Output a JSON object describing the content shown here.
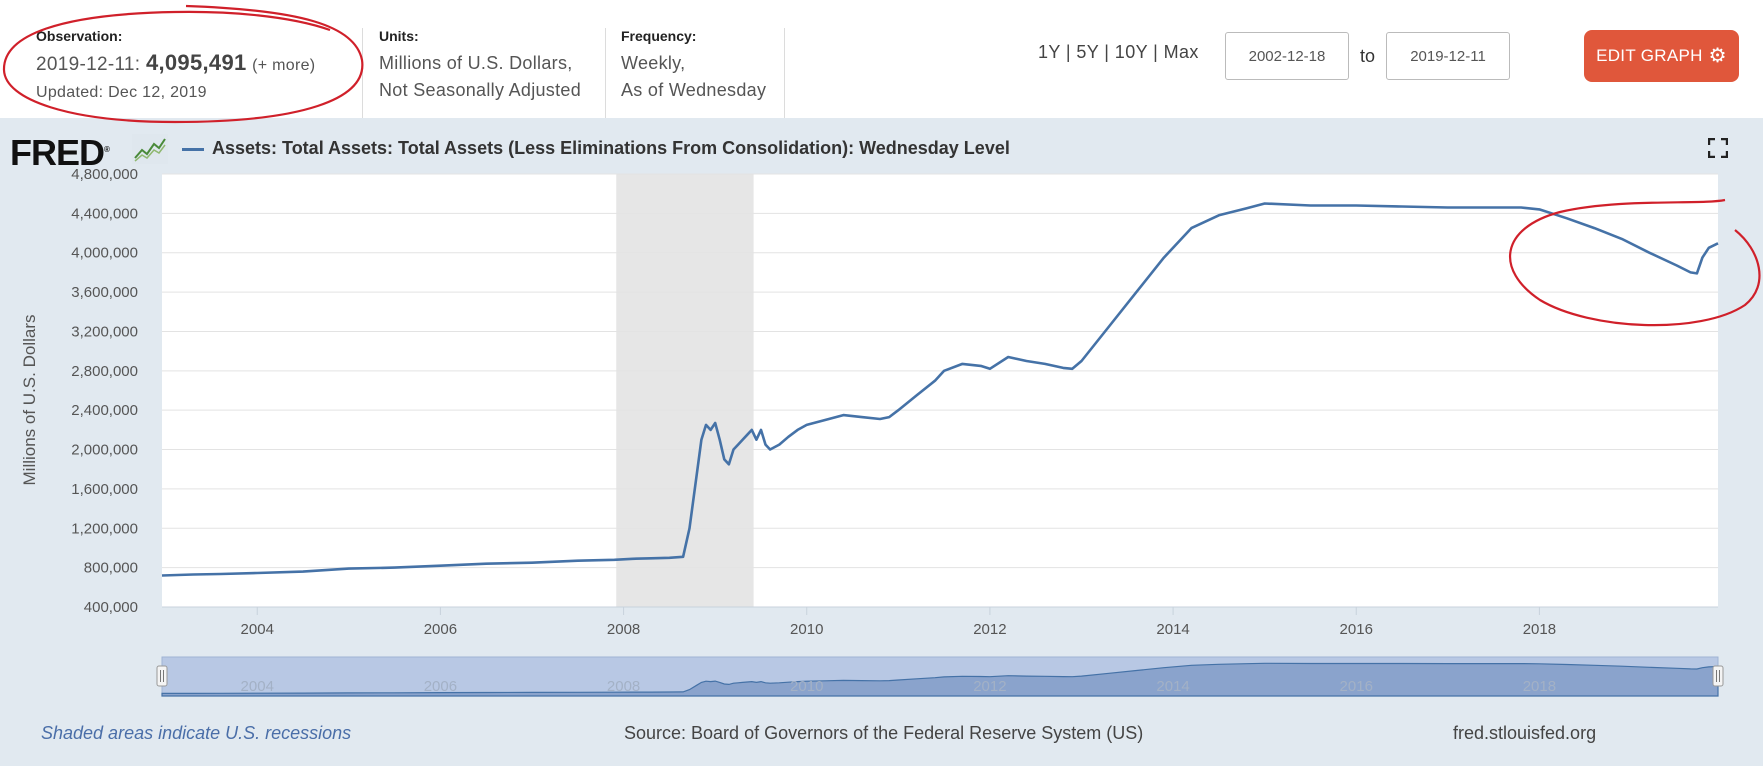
{
  "header": {
    "observation_label": "Observation:",
    "observation_date": "2019-12-11:",
    "observation_value": "4,095,491",
    "observation_more": "(+ more)",
    "updated": "Updated: Dec 12, 2019",
    "units_label": "Units:",
    "units_line1": "Millions of U.S. Dollars,",
    "units_line2": "Not Seasonally Adjusted",
    "frequency_label": "Frequency:",
    "frequency_line1": "Weekly,",
    "frequency_line2": "As of Wednesday",
    "range_1y": "1Y",
    "range_5y": "5Y",
    "range_10y": "10Y",
    "range_max": "Max",
    "range_sep": "|",
    "date_from": "2002-12-18",
    "date_to": "2019-12-11",
    "to_label": "to",
    "edit_graph": "EDIT GRAPH",
    "edit_icon": "gear-icon"
  },
  "logo": {
    "text": "FRED",
    "reg": "®"
  },
  "footer": {
    "recession_note": "Shaded areas indicate U.S. recessions",
    "source": "Source: Board of Governors of the Federal Reserve System (US)",
    "site": "fred.stlouisfed.org"
  },
  "colors": {
    "series": "#4572a7",
    "edit_button": "#e0573b",
    "panel_bg": "#e1e9f0",
    "recession": "#e6e6e6",
    "annotation": "#d0202a"
  },
  "chart_data": {
    "type": "line",
    "title": "Assets: Total Assets: Total Assets (Less Eliminations From Consolidation): Wednesday Level",
    "xlabel": "",
    "ylabel": "Millions of U.S. Dollars",
    "xlim": [
      2002.96,
      2019.95
    ],
    "ylim": [
      400000,
      4800000
    ],
    "yticks": [
      400000,
      800000,
      1200000,
      1600000,
      2000000,
      2400000,
      2800000,
      3200000,
      3600000,
      4000000,
      4400000,
      4800000
    ],
    "ytick_labels": [
      "400,000",
      "800,000",
      "1,200,000",
      "1,600,000",
      "2,000,000",
      "2,400,000",
      "2,800,000",
      "3,200,000",
      "3,600,000",
      "4,000,000",
      "4,400,000",
      "4,800,000"
    ],
    "xticks": [
      2004,
      2006,
      2008,
      2010,
      2012,
      2014,
      2016,
      2018
    ],
    "xtick_labels": [
      "2004",
      "2006",
      "2008",
      "2010",
      "2012",
      "2014",
      "2016",
      "2018"
    ],
    "recessions": [
      [
        2007.92,
        2009.42
      ]
    ],
    "grid": true,
    "series": [
      {
        "name": "Assets: Total Assets: Total Assets (Less Eliminations From Consolidation): Wednesday Level",
        "x": [
          2002.96,
          2003.3,
          2003.6,
          2004.0,
          2004.5,
          2005.0,
          2005.5,
          2006.0,
          2006.5,
          2007.0,
          2007.5,
          2007.9,
          2008.1,
          2008.3,
          2008.5,
          2008.65,
          2008.72,
          2008.8,
          2008.85,
          2008.9,
          2008.95,
          2009.0,
          2009.05,
          2009.1,
          2009.15,
          2009.2,
          2009.25,
          2009.3,
          2009.35,
          2009.4,
          2009.45,
          2009.5,
          2009.55,
          2009.6,
          2009.7,
          2009.8,
          2009.9,
          2010.0,
          2010.2,
          2010.4,
          2010.6,
          2010.8,
          2010.9,
          2011.0,
          2011.2,
          2011.4,
          2011.5,
          2011.7,
          2011.9,
          2012.0,
          2012.2,
          2012.4,
          2012.6,
          2012.8,
          2012.9,
          2013.0,
          2013.3,
          2013.6,
          2013.9,
          2014.2,
          2014.5,
          2014.8,
          2015.0,
          2015.5,
          2016.0,
          2016.5,
          2017.0,
          2017.5,
          2017.8,
          2018.0,
          2018.3,
          2018.6,
          2018.9,
          2019.2,
          2019.5,
          2019.65,
          2019.72,
          2019.78,
          2019.85,
          2019.95
        ],
        "y": [
          720000,
          730000,
          735000,
          745000,
          760000,
          790000,
          800000,
          820000,
          840000,
          850000,
          870000,
          880000,
          890000,
          895000,
          900000,
          910000,
          1200000,
          1750000,
          2100000,
          2250000,
          2200000,
          2270000,
          2100000,
          1900000,
          1850000,
          2000000,
          2050000,
          2100000,
          2150000,
          2200000,
          2100000,
          2200000,
          2050000,
          2000000,
          2050000,
          2130000,
          2200000,
          2250000,
          2300000,
          2350000,
          2330000,
          2310000,
          2330000,
          2400000,
          2550000,
          2700000,
          2800000,
          2870000,
          2850000,
          2820000,
          2940000,
          2900000,
          2870000,
          2830000,
          2820000,
          2900000,
          3250000,
          3600000,
          3950000,
          4250000,
          4380000,
          4450000,
          4500000,
          4480000,
          4480000,
          4470000,
          4460000,
          4460000,
          4460000,
          4440000,
          4350000,
          4250000,
          4140000,
          4000000,
          3870000,
          3800000,
          3790000,
          3950000,
          4050000,
          4095491
        ]
      }
    ]
  }
}
